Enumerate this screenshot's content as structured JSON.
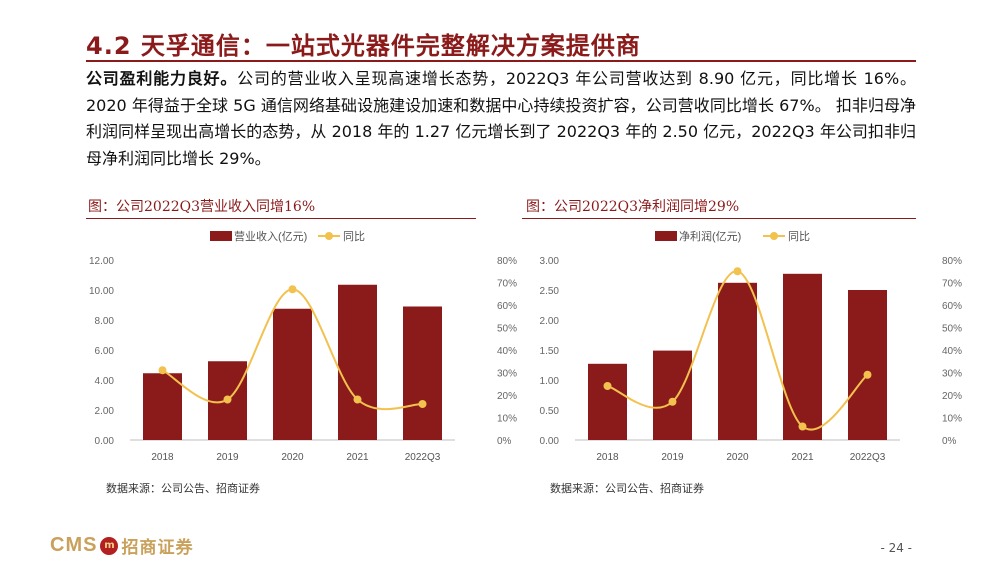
{
  "header": {
    "title": "4.2  天孚通信：一站式光器件完整解决方案提供商"
  },
  "body": {
    "lead": "公司盈利能力良好。",
    "text": "公司的营业收入呈现高速增长态势，2022Q3 年公司营收达到 8.90 亿元，同比增长 16%。2020 年得益于全球 5G 通信网络基础设施建设加速和数据中心持续投资扩容，公司营收同比增长 67%。 扣非归母净利润同样呈现出高增长的态势，从 2018 年的 1.27 亿元增长到了 2022Q3 年的 2.50 亿元，2022Q3 年公司扣非归母净利润同比增长 29%。"
  },
  "figures": [
    {
      "title": "图：公司2022Q3营业收入同增16%",
      "source": "数据来源：公司公告、招商证券"
    },
    {
      "title": "图：公司2022Q3净利润同增29%",
      "source": "数据来源：公司公告、招商证券"
    }
  ],
  "chart_data": [
    {
      "type": "bar",
      "categories": [
        "2018",
        "2019",
        "2020",
        "2021",
        "2022Q3"
      ],
      "series": [
        {
          "name": "营业收入(亿元)",
          "type": "bar",
          "axis": "left",
          "color": "#8b1a1a",
          "values": [
            4.45,
            5.25,
            8.75,
            10.35,
            8.9
          ]
        },
        {
          "name": "同比",
          "type": "line",
          "axis": "right",
          "color": "#f2c14e",
          "values": [
            0.31,
            0.18,
            0.67,
            0.18,
            0.16
          ]
        }
      ],
      "y_left": {
        "min": 0,
        "max": 12,
        "ticks": [
          "0.00",
          "2.00",
          "4.00",
          "6.00",
          "8.00",
          "10.00",
          "12.00"
        ]
      },
      "y_right": {
        "min": 0,
        "max": 0.8,
        "ticks": [
          "0%",
          "10%",
          "20%",
          "30%",
          "40%",
          "50%",
          "60%",
          "70%",
          "80%"
        ]
      },
      "legend": "top"
    },
    {
      "type": "bar",
      "categories": [
        "2018",
        "2019",
        "2020",
        "2021",
        "2022Q3"
      ],
      "series": [
        {
          "name": "净利润(亿元)",
          "type": "bar",
          "axis": "left",
          "color": "#8b1a1a",
          "values": [
            1.27,
            1.49,
            2.62,
            2.77,
            2.5
          ]
        },
        {
          "name": "同比",
          "type": "line",
          "axis": "right",
          "color": "#f2c14e",
          "values": [
            0.24,
            0.17,
            0.75,
            0.06,
            0.29
          ]
        }
      ],
      "y_left": {
        "min": 0,
        "max": 3,
        "ticks": [
          "0.00",
          "0.50",
          "1.00",
          "1.50",
          "2.00",
          "2.50",
          "3.00"
        ]
      },
      "y_right": {
        "min": 0,
        "max": 0.8,
        "ticks": [
          "0%",
          "10%",
          "20%",
          "30%",
          "40%",
          "50%",
          "60%",
          "70%",
          "80%"
        ]
      },
      "legend": "top"
    }
  ],
  "footer": {
    "logo_text": "CMS",
    "logo_mark": "m",
    "brand": "招商证券",
    "page": "- 24 -"
  }
}
